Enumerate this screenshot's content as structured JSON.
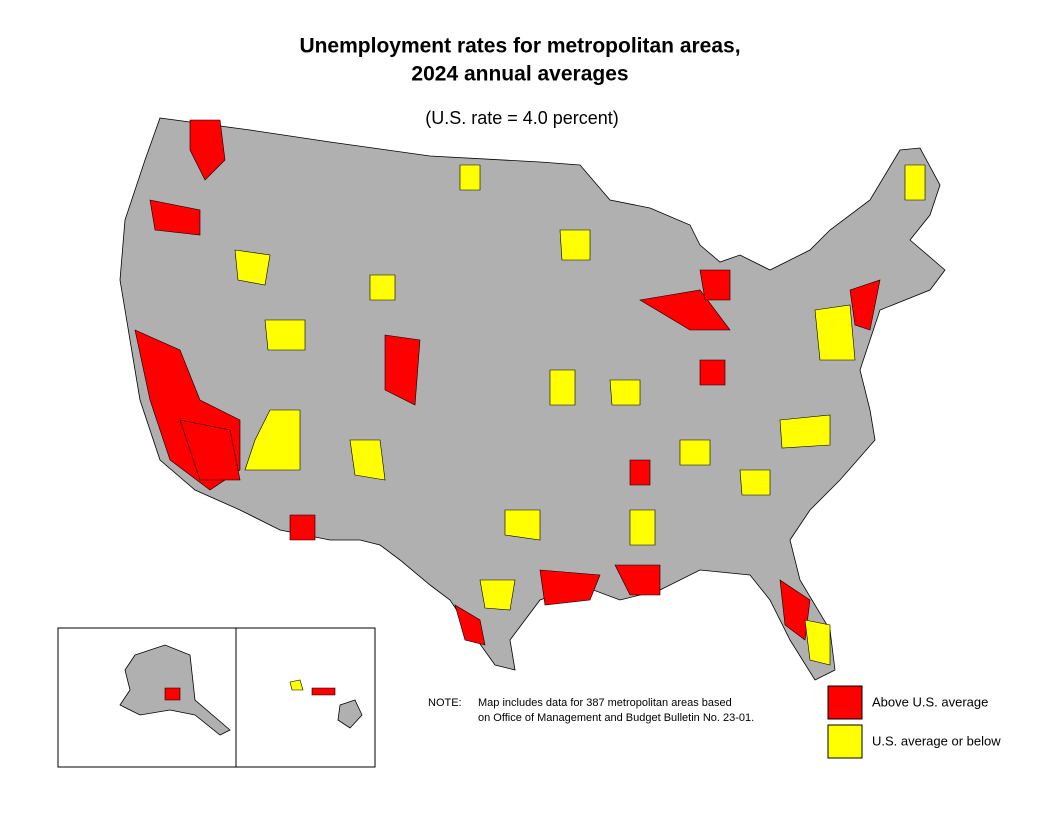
{
  "title": [
    "Unemployment rates for metropolitan areas,",
    "2024 annual averages"
  ],
  "subtitle": "(U.S. rate = 4.0 percent)",
  "map_color": "#b0b0b0",
  "note": {
    "label": "NOTE:",
    "lines": [
      "Map includes data for 387 metropolitan areas based",
      "on Office of Management and Budget Bulletin No. 23-01."
    ]
  },
  "legend": [
    {
      "label": "Above U.S. average",
      "color": "#ff0000"
    },
    {
      "label": "U.S. average or below",
      "color": "#ffff00"
    }
  ]
}
